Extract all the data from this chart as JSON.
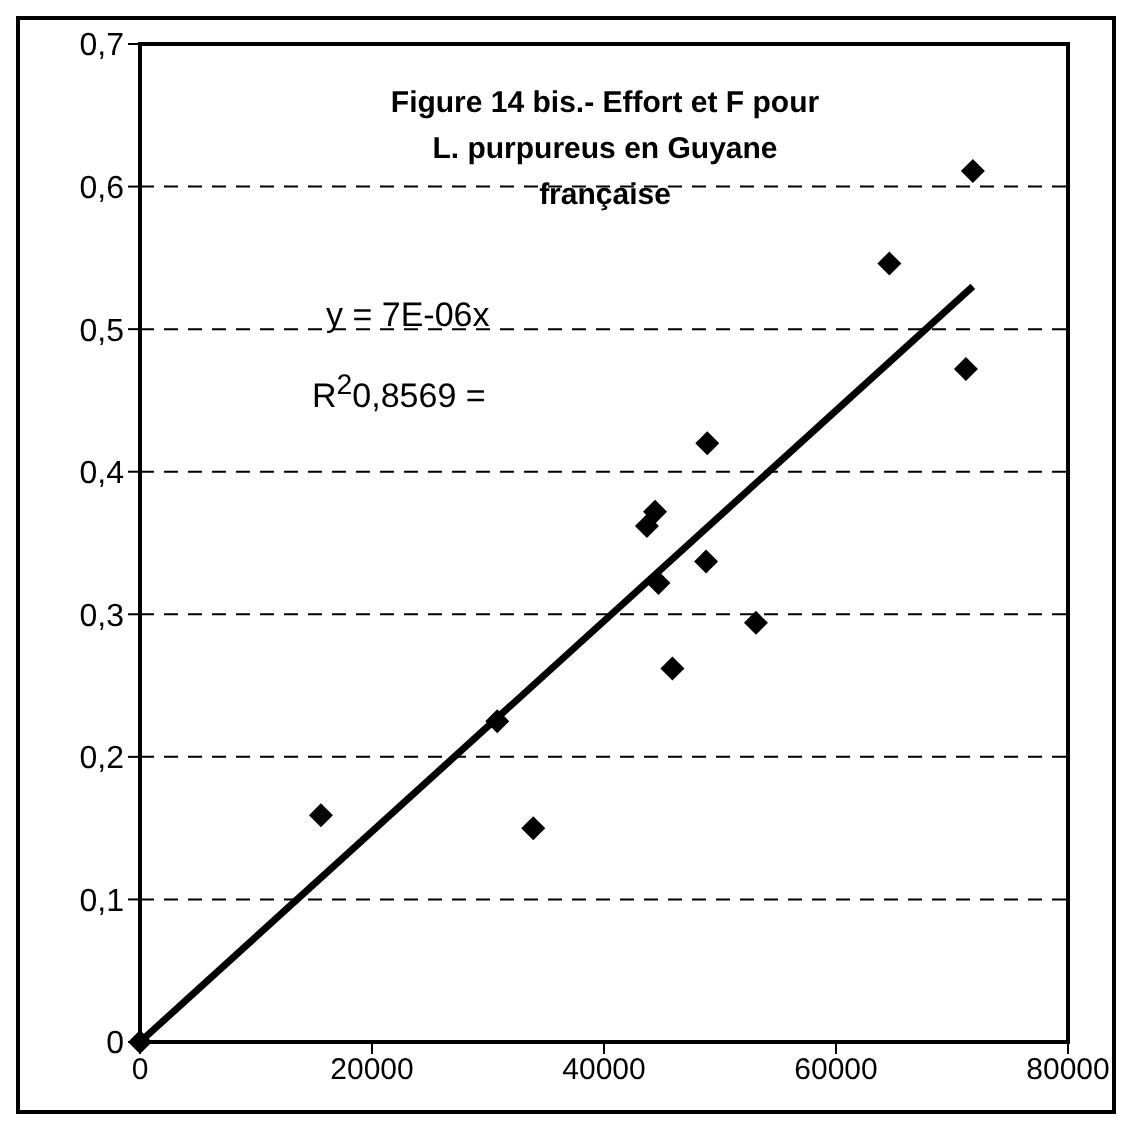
{
  "chart_data": {
    "type": "scatter",
    "title": "Figure 14 bis.- Effort et F pour L. purpureus en Guyane française",
    "annotations": [
      "y = 7E-06x",
      "R$^{2}$0,8569 ="
    ],
    "x": [
      0,
      15600,
      30800,
      33900,
      43700,
      44400,
      44700,
      45900,
      48800,
      48900,
      53100,
      64600,
      71200,
      71800
    ],
    "series": [
      {
        "color": "#000000",
        "marker": "diamond",
        "values": [
          0,
          0.159,
          0.225,
          0.15,
          0.362,
          0.372,
          0.322,
          0.262,
          0.337,
          0.42,
          0.294,
          0.546,
          0.472,
          0.611
        ]
      },
      {
        "type": "line",
        "color": "#000000",
        "x": [
          0,
          71800
        ],
        "values": [
          0,
          0.53
        ]
      }
    ],
    "xlim": [
      0,
      80000
    ],
    "xticks": [
      0,
      20000,
      40000,
      60000,
      80000
    ],
    "ylim": [
      0,
      0.7
    ],
    "yticks": [
      {
        "value": 0,
        "label": "0"
      },
      {
        "value": 0.1,
        "label": "0,1"
      },
      {
        "value": 0.2,
        "label": "0,2"
      },
      {
        "value": 0.3,
        "label": "0,3"
      },
      {
        "value": 0.4,
        "label": "0,4"
      },
      {
        "value": 0.5,
        "label": "0,5"
      },
      {
        "value": 0.6,
        "label": "0,6"
      },
      {
        "value": 0.7,
        "label": "0,7"
      }
    ],
    "grid": "y",
    "legend": false
  }
}
